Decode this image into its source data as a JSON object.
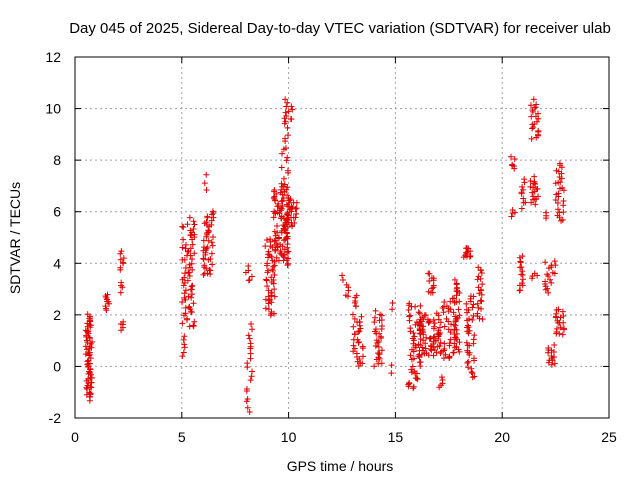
{
  "chart_data": {
    "type": "scatter",
    "title": "Day 045 of 2025, Sidereal Day-to-day VTEC variation (SDTVAR) for receiver ulab",
    "xlabel": "GPS time / hours",
    "ylabel": "SDTVAR / TECUs",
    "xlim": [
      0,
      25
    ],
    "ylim": [
      -2,
      12
    ],
    "xticks": [
      "0",
      "5",
      "10",
      "15",
      "20",
      "25"
    ],
    "yticks": [
      "-2",
      "0",
      "2",
      "4",
      "6",
      "8",
      "10",
      "12"
    ],
    "grid": true,
    "marker": "+",
    "color": "#e00000",
    "series": [
      {
        "name": "SDTVAR",
        "clusters": [
          {
            "x": [
              0.5,
              0.8
            ],
            "y": [
              -1.3,
              2.0
            ],
            "n": 70
          },
          {
            "x": [
              1.4,
              1.6
            ],
            "y": [
              2.2,
              2.8
            ],
            "n": 10
          },
          {
            "x": [
              2.1,
              2.3
            ],
            "y": [
              3.8,
              4.4
            ],
            "n": 8
          },
          {
            "x": [
              2.1,
              2.3
            ],
            "y": [
              2.9,
              3.2
            ],
            "n": 4
          },
          {
            "x": [
              2.1,
              2.3
            ],
            "y": [
              1.4,
              1.8
            ],
            "n": 5
          },
          {
            "x": [
              5.0,
              5.2
            ],
            "y": [
              0.4,
              1.2
            ],
            "n": 6
          },
          {
            "x": [
              5.0,
              5.6
            ],
            "y": [
              1.5,
              5.7
            ],
            "n": 70
          },
          {
            "x": [
              6.0,
              6.2
            ],
            "y": [
              6.8,
              7.5
            ],
            "n": 3
          },
          {
            "x": [
              6.0,
              6.5
            ],
            "y": [
              3.5,
              6.0
            ],
            "n": 45
          },
          {
            "x": [
              8.0,
              8.3
            ],
            "y": [
              -1.8,
              -0.8
            ],
            "n": 6
          },
          {
            "x": [
              8.0,
              8.3
            ],
            "y": [
              -0.5,
              1.6
            ],
            "n": 14
          },
          {
            "x": [
              8.0,
              8.3
            ],
            "y": [
              3.3,
              3.9
            ],
            "n": 6
          },
          {
            "x": [
              8.9,
              9.4
            ],
            "y": [
              2.0,
              5.0
            ],
            "n": 50
          },
          {
            "x": [
              9.3,
              10.0
            ],
            "y": [
              4.0,
              7.0
            ],
            "n": 90
          },
          {
            "x": [
              9.9,
              10.4
            ],
            "y": [
              5.5,
              6.5
            ],
            "n": 30
          },
          {
            "x": [
              9.6,
              10.0
            ],
            "y": [
              7.0,
              9.0
            ],
            "n": 14
          },
          {
            "x": [
              9.8,
              10.3
            ],
            "y": [
              9.3,
              10.3
            ],
            "n": 14
          },
          {
            "x": [
              12.5,
              12.7
            ],
            "y": [
              3.3,
              3.6
            ],
            "n": 2
          },
          {
            "x": [
              12.6,
              12.8
            ],
            "y": [
              2.7,
              3.1
            ],
            "n": 5
          },
          {
            "x": [
              13.0,
              13.2
            ],
            "y": [
              2.3,
              2.8
            ],
            "n": 6
          },
          {
            "x": [
              13.0,
              13.5
            ],
            "y": [
              0.0,
              2.0
            ],
            "n": 30
          },
          {
            "x": [
              14.0,
              14.4
            ],
            "y": [
              0.0,
              2.1
            ],
            "n": 30
          },
          {
            "x": [
              14.8,
              14.9
            ],
            "y": [
              2.2,
              2.5
            ],
            "n": 2
          },
          {
            "x": [
              14.8,
              14.9
            ],
            "y": [
              -0.2,
              0.0
            ],
            "n": 2
          },
          {
            "x": [
              15.6,
              16.2
            ],
            "y": [
              -0.9,
              2.5
            ],
            "n": 55
          },
          {
            "x": [
              16.1,
              17.2
            ],
            "y": [
              0.4,
              2.0
            ],
            "n": 70
          },
          {
            "x": [
              16.5,
              16.8
            ],
            "y": [
              2.8,
              3.6
            ],
            "n": 12
          },
          {
            "x": [
              17.0,
              17.3
            ],
            "y": [
              -0.8,
              -0.4
            ],
            "n": 5
          },
          {
            "x": [
              17.2,
              18.0
            ],
            "y": [
              0.3,
              2.7
            ],
            "n": 60
          },
          {
            "x": [
              17.7,
              18.0
            ],
            "y": [
              2.8,
              3.3
            ],
            "n": 8
          },
          {
            "x": [
              18.2,
              18.6
            ],
            "y": [
              4.2,
              4.6
            ],
            "n": 12
          },
          {
            "x": [
              18.3,
              18.7
            ],
            "y": [
              -0.4,
              2.8
            ],
            "n": 40
          },
          {
            "x": [
              18.8,
              19.1
            ],
            "y": [
              1.8,
              3.9
            ],
            "n": 22
          },
          {
            "x": [
              20.4,
              20.6
            ],
            "y": [
              7.6,
              8.1
            ],
            "n": 6
          },
          {
            "x": [
              20.4,
              20.6
            ],
            "y": [
              5.8,
              6.1
            ],
            "n": 4
          },
          {
            "x": [
              20.8,
              21.0
            ],
            "y": [
              2.9,
              4.3
            ],
            "n": 15
          },
          {
            "x": [
              20.9,
              21.1
            ],
            "y": [
              6.2,
              7.2
            ],
            "n": 10
          },
          {
            "x": [
              21.3,
              21.7
            ],
            "y": [
              8.8,
              10.3
            ],
            "n": 22
          },
          {
            "x": [
              21.3,
              21.7
            ],
            "y": [
              6.3,
              7.3
            ],
            "n": 18
          },
          {
            "x": [
              21.3,
              21.7
            ],
            "y": [
              3.4,
              3.6
            ],
            "n": 4
          },
          {
            "x": [
              22.0,
              22.5
            ],
            "y": [
              2.9,
              4.1
            ],
            "n": 18
          },
          {
            "x": [
              22.0,
              22.1
            ],
            "y": [
              5.7,
              6.0
            ],
            "n": 3
          },
          {
            "x": [
              22.1,
              22.5
            ],
            "y": [
              0.0,
              0.8
            ],
            "n": 14
          },
          {
            "x": [
              22.5,
              22.9
            ],
            "y": [
              5.6,
              7.9
            ],
            "n": 28
          },
          {
            "x": [
              22.5,
              22.9
            ],
            "y": [
              1.2,
              2.2
            ],
            "n": 20
          }
        ]
      }
    ]
  }
}
